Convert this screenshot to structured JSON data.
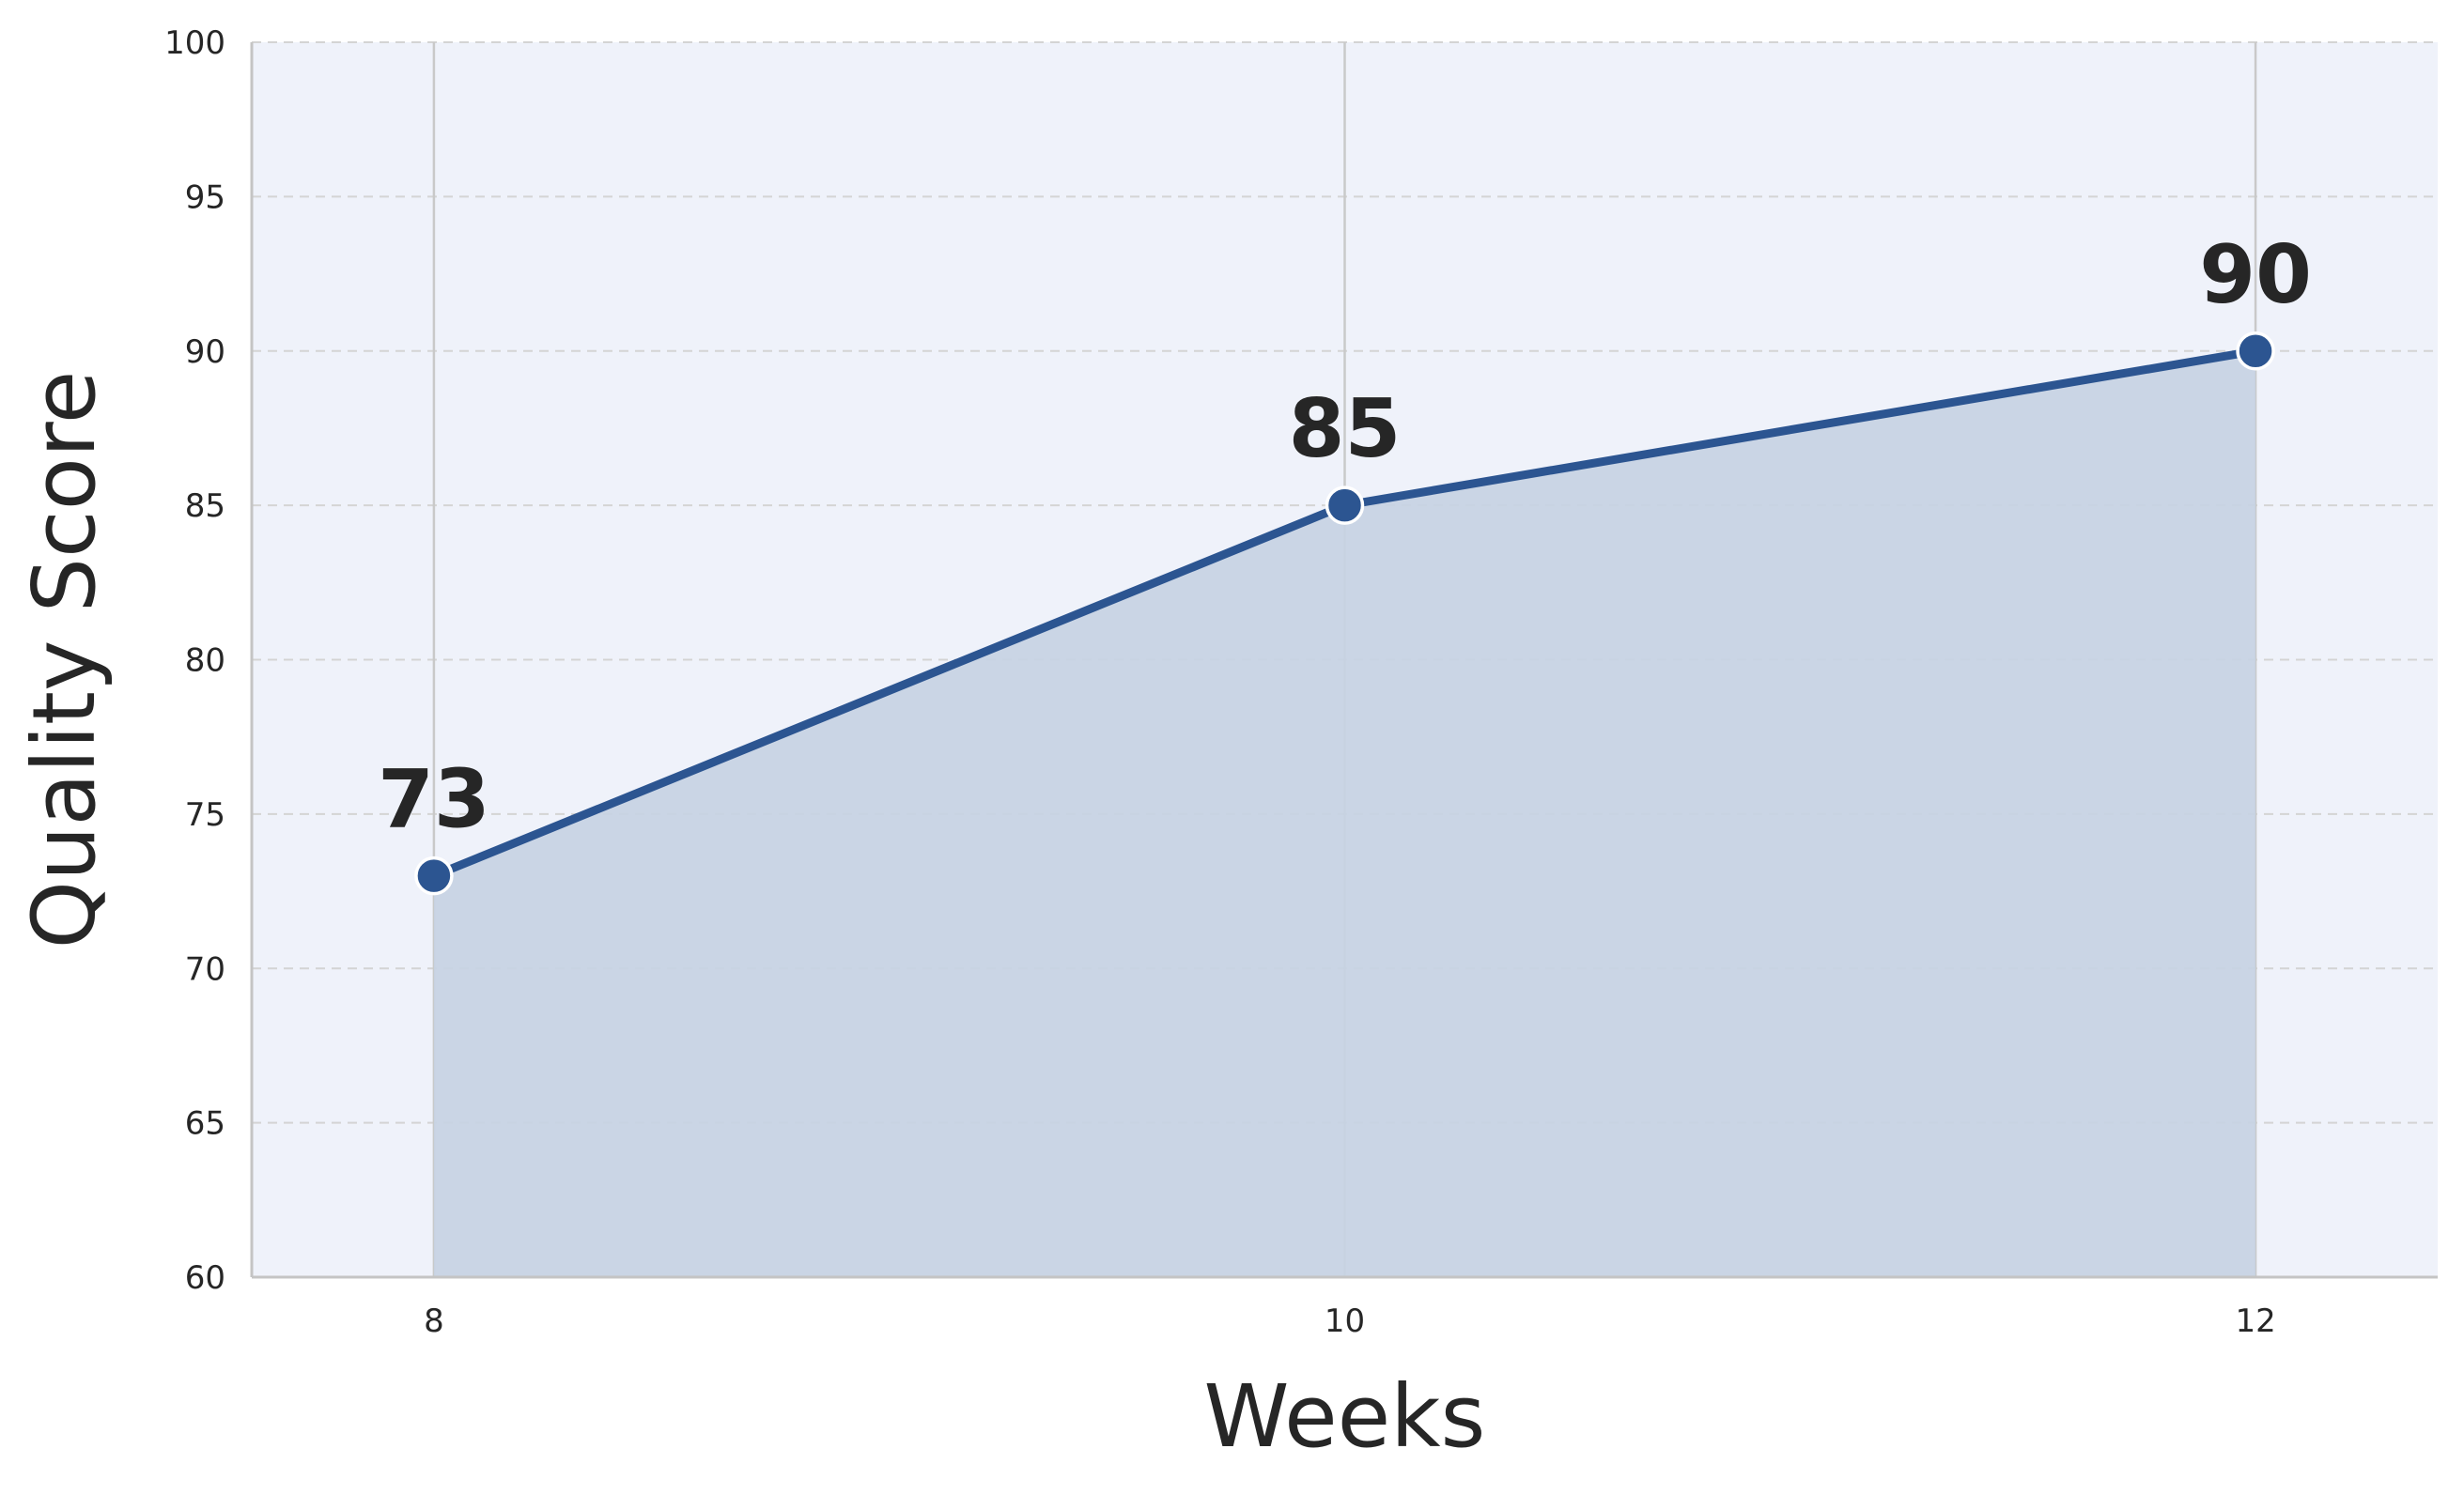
{
  "chart_data": {
    "type": "area",
    "title": "",
    "xlabel": "Weeks",
    "ylabel": "Quality Score",
    "x": [
      8,
      10,
      12
    ],
    "values": [
      73,
      85,
      90
    ],
    "data_labels": [
      "73",
      "85",
      "90"
    ],
    "xticks": [
      8,
      10,
      12
    ],
    "xtick_labels": [
      "8",
      "10",
      "12"
    ],
    "yticks": [
      60,
      65,
      70,
      75,
      80,
      85,
      90,
      95,
      100
    ],
    "ytick_labels": [
      "60",
      "65",
      "70",
      "75",
      "80",
      "85",
      "90",
      "95",
      "100"
    ],
    "xlim": [
      7.6,
      12.4
    ],
    "ylim": [
      60,
      100
    ],
    "grid": true,
    "grid_style": "horizontal dashed, vertical solid at x ticks",
    "legend": "none",
    "colors": {
      "line": "#2c5591",
      "fill": "#c7d2e3",
      "plot_background": "#eff2fa",
      "grid": "#d4d4d4",
      "marker_edge": "#ffffff"
    }
  }
}
